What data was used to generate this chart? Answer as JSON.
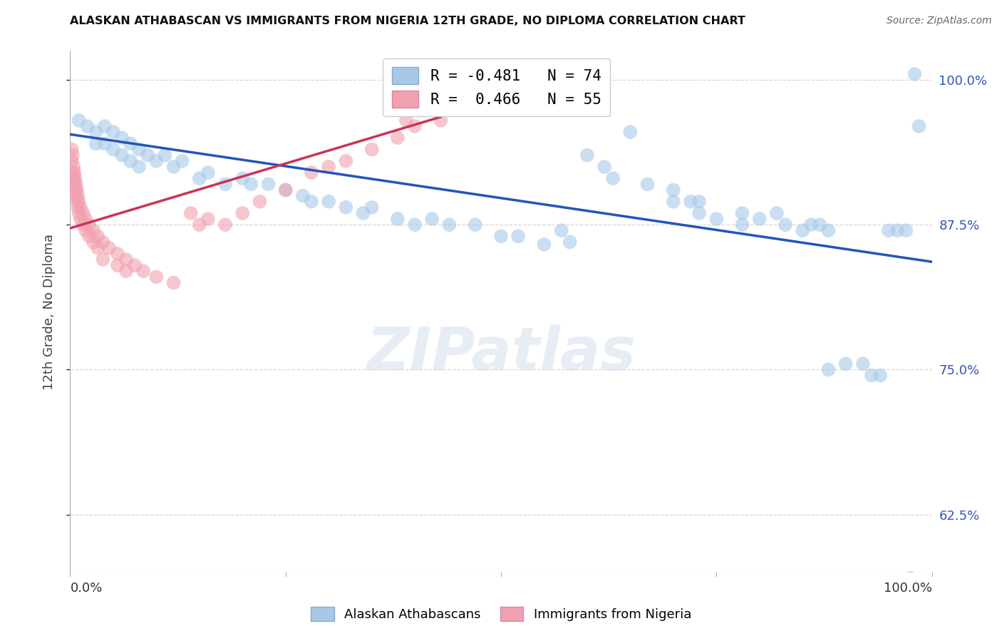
{
  "title": "ALASKAN ATHABASCAN VS IMMIGRANTS FROM NIGERIA 12TH GRADE, NO DIPLOMA CORRELATION CHART",
  "source": "Source: ZipAtlas.com",
  "ylabel": "12th Grade, No Diploma",
  "xlim": [
    0.0,
    1.0
  ],
  "ylim": [
    0.575,
    1.025
  ],
  "yticks": [
    0.625,
    0.75,
    0.875,
    1.0
  ],
  "ytick_labels": [
    "62.5%",
    "75.0%",
    "87.5%",
    "100.0%"
  ],
  "blue_color": "#a8c8e8",
  "pink_color": "#f0a0b0",
  "blue_line_color": "#2255bb",
  "pink_line_color": "#cc3355",
  "background_color": "#ffffff",
  "grid_color": "#cccccc",
  "blue_points": [
    [
      0.01,
      0.965
    ],
    [
      0.02,
      0.96
    ],
    [
      0.03,
      0.955
    ],
    [
      0.03,
      0.945
    ],
    [
      0.04,
      0.96
    ],
    [
      0.04,
      0.945
    ],
    [
      0.05,
      0.955
    ],
    [
      0.05,
      0.94
    ],
    [
      0.06,
      0.95
    ],
    [
      0.06,
      0.935
    ],
    [
      0.07,
      0.945
    ],
    [
      0.07,
      0.93
    ],
    [
      0.08,
      0.94
    ],
    [
      0.08,
      0.925
    ],
    [
      0.09,
      0.935
    ],
    [
      0.1,
      0.93
    ],
    [
      0.11,
      0.935
    ],
    [
      0.12,
      0.925
    ],
    [
      0.13,
      0.93
    ],
    [
      0.15,
      0.915
    ],
    [
      0.16,
      0.92
    ],
    [
      0.18,
      0.91
    ],
    [
      0.2,
      0.915
    ],
    [
      0.21,
      0.91
    ],
    [
      0.23,
      0.91
    ],
    [
      0.25,
      0.905
    ],
    [
      0.27,
      0.9
    ],
    [
      0.28,
      0.895
    ],
    [
      0.3,
      0.895
    ],
    [
      0.32,
      0.89
    ],
    [
      0.34,
      0.885
    ],
    [
      0.35,
      0.89
    ],
    [
      0.38,
      0.88
    ],
    [
      0.4,
      0.875
    ],
    [
      0.42,
      0.88
    ],
    [
      0.44,
      0.875
    ],
    [
      0.47,
      0.875
    ],
    [
      0.5,
      0.865
    ],
    [
      0.52,
      0.865
    ],
    [
      0.55,
      0.858
    ],
    [
      0.57,
      0.87
    ],
    [
      0.58,
      0.86
    ],
    [
      0.6,
      0.935
    ],
    [
      0.62,
      0.925
    ],
    [
      0.63,
      0.915
    ],
    [
      0.65,
      0.955
    ],
    [
      0.67,
      0.91
    ],
    [
      0.7,
      0.905
    ],
    [
      0.7,
      0.895
    ],
    [
      0.72,
      0.895
    ],
    [
      0.73,
      0.895
    ],
    [
      0.73,
      0.885
    ],
    [
      0.75,
      0.88
    ],
    [
      0.78,
      0.885
    ],
    [
      0.78,
      0.875
    ],
    [
      0.8,
      0.88
    ],
    [
      0.82,
      0.885
    ],
    [
      0.83,
      0.875
    ],
    [
      0.85,
      0.87
    ],
    [
      0.86,
      0.875
    ],
    [
      0.87,
      0.875
    ],
    [
      0.88,
      0.87
    ],
    [
      0.88,
      0.75
    ],
    [
      0.9,
      0.755
    ],
    [
      0.92,
      0.755
    ],
    [
      0.93,
      0.745
    ],
    [
      0.94,
      0.745
    ],
    [
      0.95,
      0.87
    ],
    [
      0.96,
      0.87
    ],
    [
      0.97,
      0.87
    ],
    [
      0.975,
      0.57
    ],
    [
      0.98,
      1.005
    ],
    [
      0.985,
      0.96
    ]
  ],
  "pink_points": [
    [
      0.002,
      0.94
    ],
    [
      0.002,
      0.93
    ],
    [
      0.003,
      0.935
    ],
    [
      0.003,
      0.92
    ],
    [
      0.004,
      0.925
    ],
    [
      0.004,
      0.915
    ],
    [
      0.005,
      0.92
    ],
    [
      0.005,
      0.91
    ],
    [
      0.006,
      0.915
    ],
    [
      0.006,
      0.905
    ],
    [
      0.007,
      0.91
    ],
    [
      0.007,
      0.9
    ],
    [
      0.008,
      0.905
    ],
    [
      0.008,
      0.895
    ],
    [
      0.009,
      0.9
    ],
    [
      0.009,
      0.89
    ],
    [
      0.01,
      0.895
    ],
    [
      0.01,
      0.885
    ],
    [
      0.012,
      0.89
    ],
    [
      0.012,
      0.88
    ],
    [
      0.015,
      0.885
    ],
    [
      0.015,
      0.875
    ],
    [
      0.018,
      0.88
    ],
    [
      0.018,
      0.87
    ],
    [
      0.022,
      0.875
    ],
    [
      0.022,
      0.865
    ],
    [
      0.027,
      0.87
    ],
    [
      0.027,
      0.86
    ],
    [
      0.032,
      0.865
    ],
    [
      0.032,
      0.855
    ],
    [
      0.038,
      0.86
    ],
    [
      0.038,
      0.845
    ],
    [
      0.045,
      0.855
    ],
    [
      0.055,
      0.85
    ],
    [
      0.055,
      0.84
    ],
    [
      0.065,
      0.845
    ],
    [
      0.065,
      0.835
    ],
    [
      0.075,
      0.84
    ],
    [
      0.085,
      0.835
    ],
    [
      0.1,
      0.83
    ],
    [
      0.12,
      0.825
    ],
    [
      0.14,
      0.885
    ],
    [
      0.15,
      0.875
    ],
    [
      0.16,
      0.88
    ],
    [
      0.18,
      0.875
    ],
    [
      0.2,
      0.885
    ],
    [
      0.22,
      0.895
    ],
    [
      0.25,
      0.905
    ],
    [
      0.28,
      0.92
    ],
    [
      0.3,
      0.925
    ],
    [
      0.32,
      0.93
    ],
    [
      0.35,
      0.94
    ],
    [
      0.38,
      0.95
    ],
    [
      0.39,
      0.965
    ],
    [
      0.4,
      0.96
    ],
    [
      0.43,
      0.965
    ]
  ],
  "blue_line_x": [
    0.0,
    1.0
  ],
  "blue_line_y": [
    0.953,
    0.843
  ],
  "pink_line_x": [
    0.0,
    0.43
  ],
  "pink_line_y": [
    0.872,
    0.968
  ]
}
